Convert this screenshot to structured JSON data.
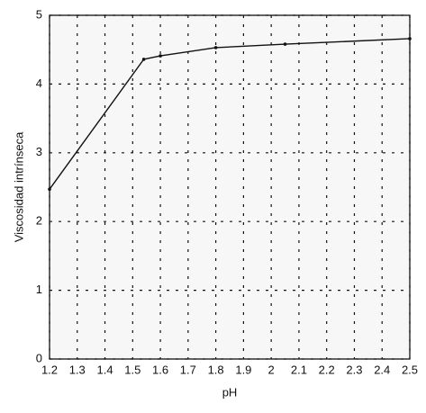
{
  "chart_data": {
    "type": "line",
    "xlabel": "pH",
    "ylabel": "Viscosidad intrínseca",
    "x": [
      1.2,
      1.54,
      1.6,
      1.8,
      2.05,
      2.5
    ],
    "series": [
      {
        "color": "#111111",
        "values": [
          2.47,
          4.36,
          4.41,
          4.53,
          4.58,
          4.66
        ]
      }
    ],
    "xlim": [
      1.2,
      2.5
    ],
    "xticks": [
      1.2,
      1.3,
      1.4,
      1.5,
      1.6,
      1.7,
      1.8,
      1.9,
      2,
      2.1,
      2.2,
      2.3,
      2.4,
      2.5
    ],
    "ylim": [
      0,
      5
    ],
    "yticks": [
      0,
      1,
      2,
      3,
      4,
      5
    ],
    "grid": true
  }
}
